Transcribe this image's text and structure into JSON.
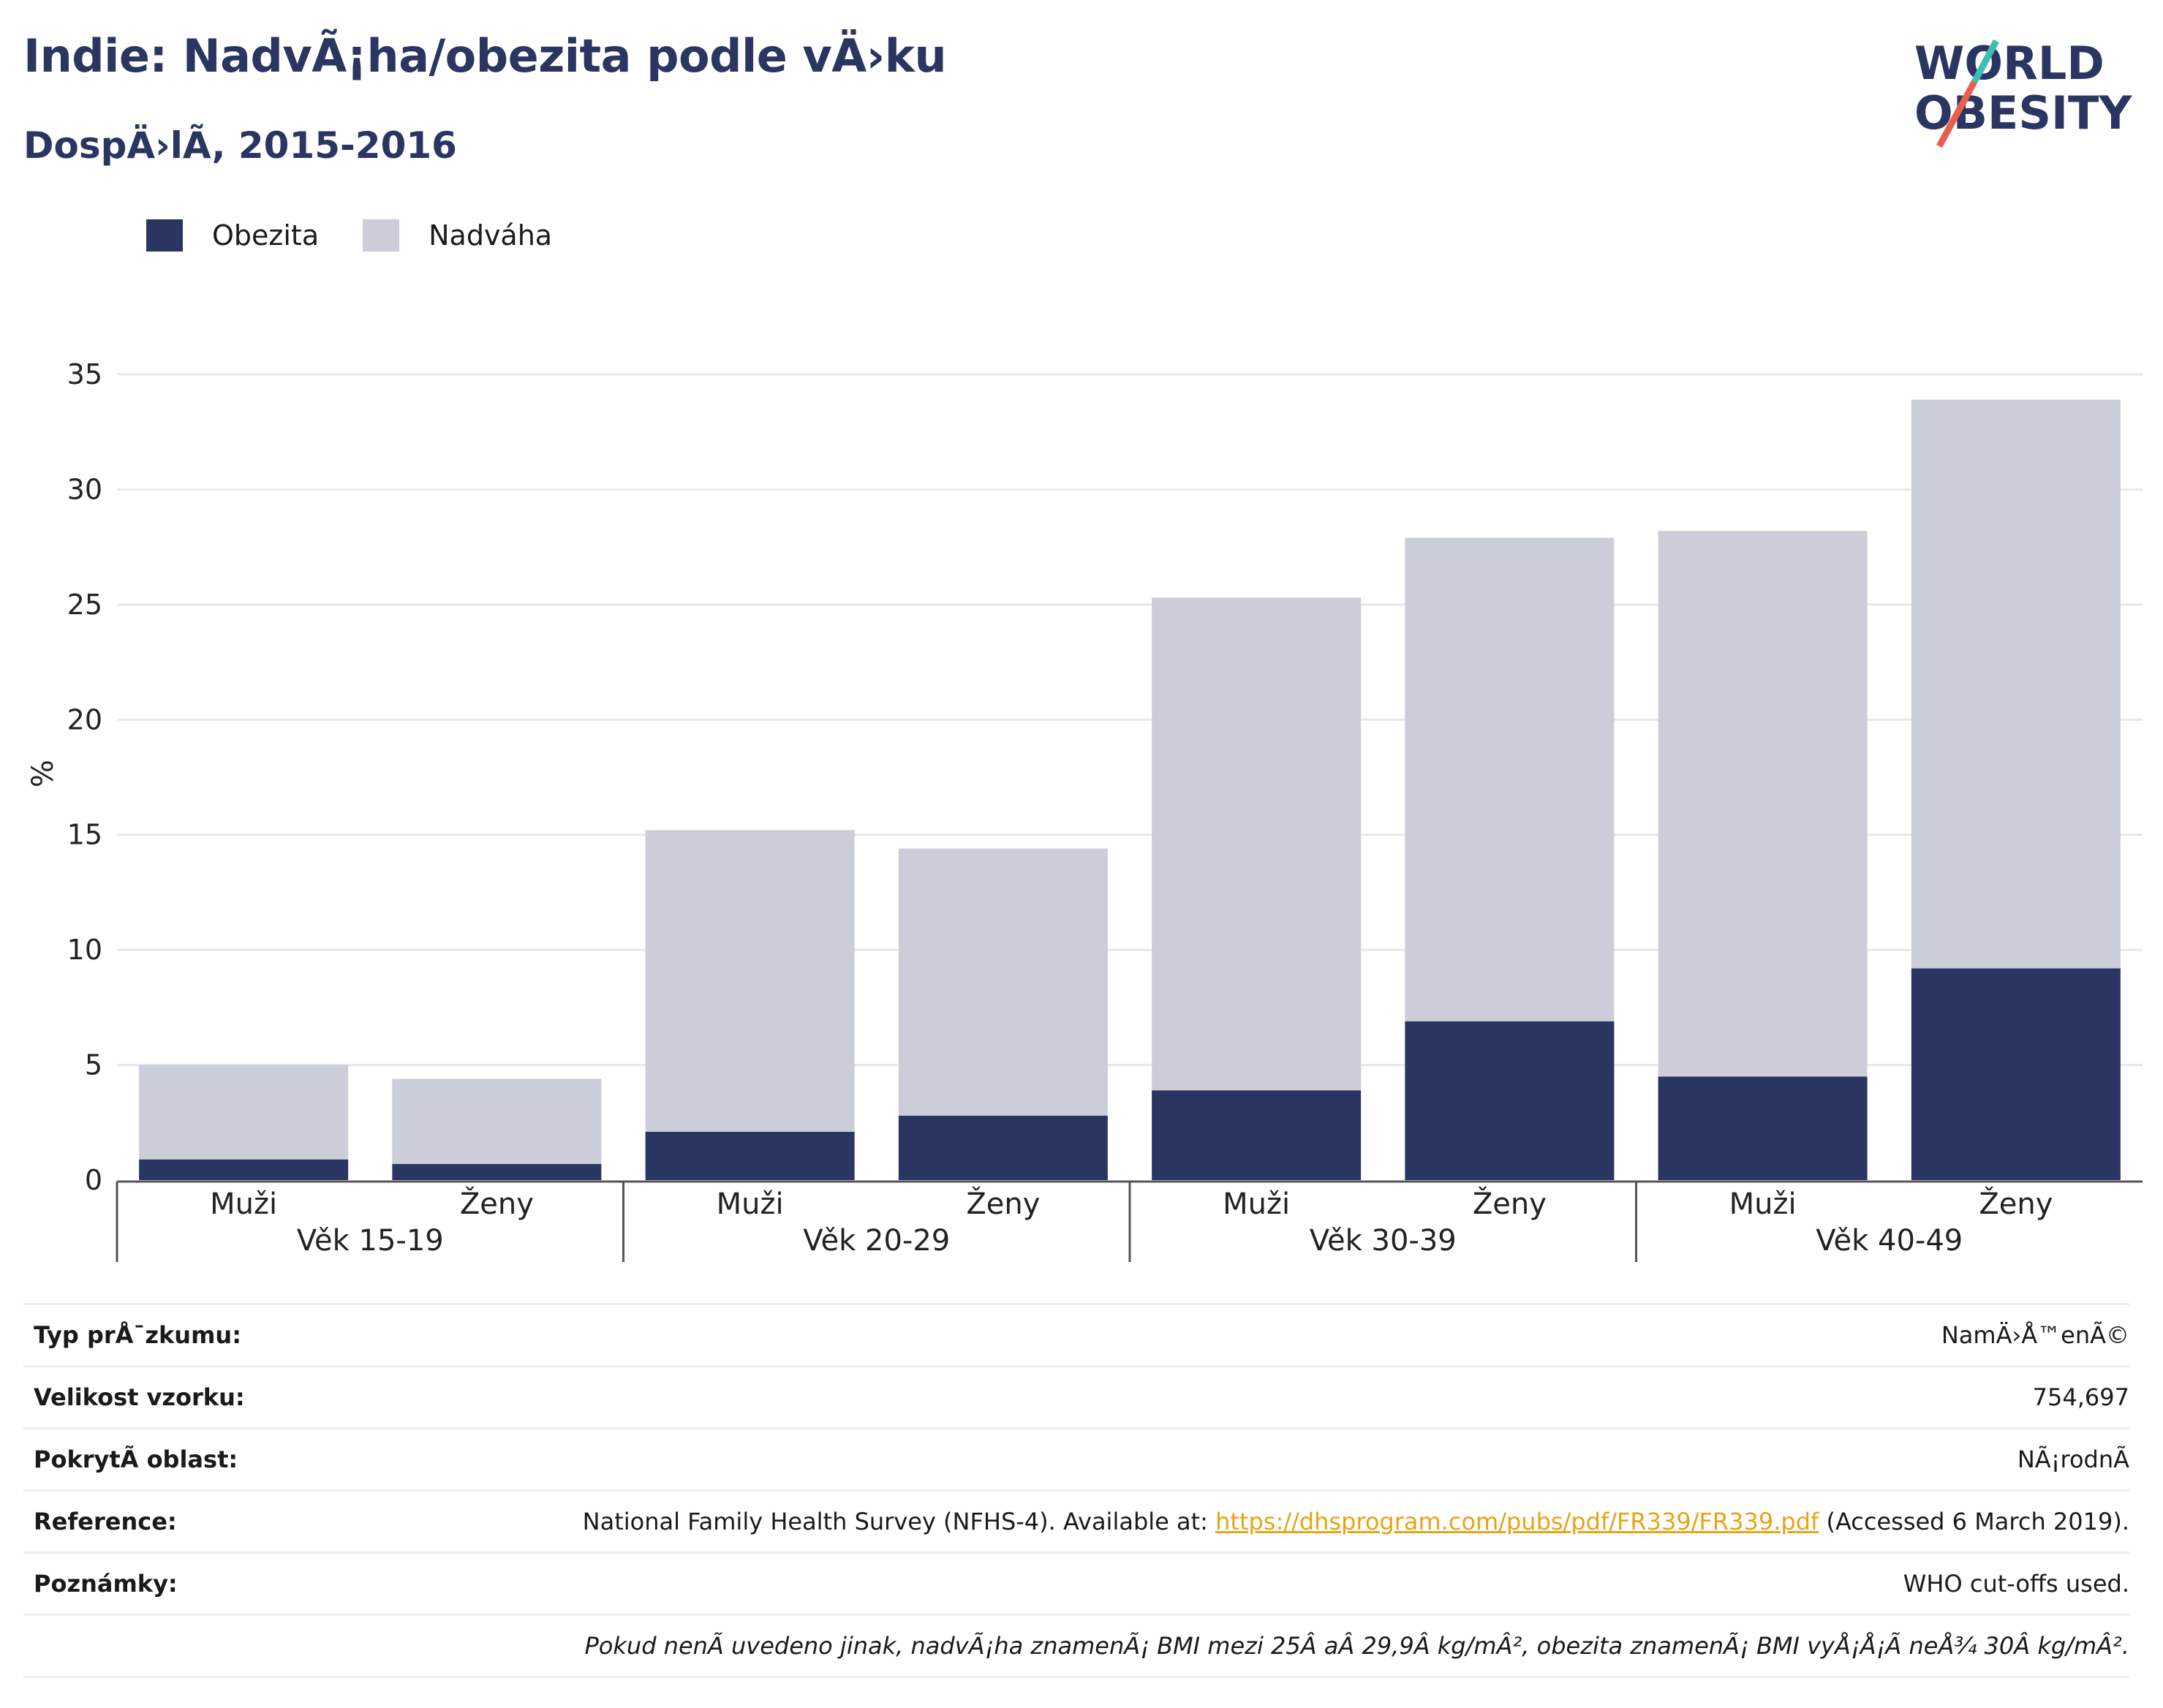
{
  "title": "Indie: NadvÃ¡ha/obezita podle vÄ›ku",
  "subtitle": "DospÄ›lÃ­, 2015-2016",
  "logo": {
    "line1": "WORLD",
    "line2": "OBESITY"
  },
  "colors": {
    "obesity": "#2a3561",
    "overweight": "#cbcdd8",
    "title": "#2a3561",
    "link": "#e8a317",
    "logo_slash_teal": "#3bbfb0",
    "logo_slash_red": "#e8604c"
  },
  "legend": {
    "obesity": "Obezita",
    "overweight": "Nadváha"
  },
  "chart_data": {
    "type": "bar",
    "stacked": true,
    "ylabel": "%",
    "ylim": [
      0,
      35
    ],
    "yticks": [
      0,
      5,
      10,
      15,
      20,
      25,
      30,
      35
    ],
    "grid": true,
    "legend_position": "top-left",
    "groups": [
      "Věk 15-19",
      "Věk 20-29",
      "Věk 30-39",
      "Věk 40-49"
    ],
    "categories": [
      "Muži",
      "Ženy",
      "Muži",
      "Ženy",
      "Muži",
      "Ženy",
      "Muži",
      "Ženy"
    ],
    "series": [
      {
        "name": "Obezita",
        "values": [
          0.9,
          0.7,
          2.1,
          2.8,
          3.9,
          6.9,
          4.5,
          9.2
        ]
      },
      {
        "name": "Nadváha",
        "values": [
          4.1,
          3.7,
          13.1,
          11.6,
          21.4,
          21.0,
          23.7,
          24.7
        ]
      }
    ]
  },
  "table": {
    "survey_type": {
      "label": "Typ prÅ¯zkumu:",
      "value": "NamÄ›Å™enÃ©"
    },
    "sample_size": {
      "label": "Velikost vzorku:",
      "value": "754,697"
    },
    "coverage": {
      "label": "PokrytÃ­ oblast:",
      "value": "NÃ¡rodnÃ­"
    },
    "reference": {
      "label": "Reference:",
      "text_before": "National Family Health Survey (NFHS-4). Available at: ",
      "link": "https://dhsprogram.com/pubs/pdf/FR339/FR339.pdf",
      "text_after": " (Accessed 6 March 2019)."
    },
    "notes": {
      "label": "Poznámky:",
      "value": "WHO cut-offs used."
    },
    "footnote": "Pokud nenÃ­ uvedeno jinak, nadvÃ¡ha znamenÃ¡ BMI mezi 25Â aÂ 29,9Â kg/mÂ², obezita znamenÃ¡ BMI vyÅ¡Å¡Ã­ neÅ¾ 30Â kg/mÂ²."
  }
}
